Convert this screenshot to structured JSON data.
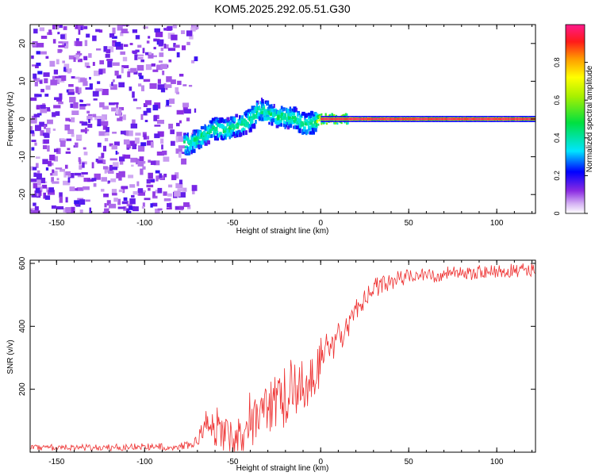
{
  "figure": {
    "title": "KOM5.2025.292.05.51.G30"
  },
  "chart_data": [
    {
      "type": "heatmap",
      "title": "KOM5.2025.292.05.51.G30",
      "xlabel": "Height of straight line (km)",
      "ylabel": "Frequency (Hz)",
      "xlim": [
        -165,
        122
      ],
      "ylim": [
        -25,
        25
      ],
      "xticks": [
        -150,
        -100,
        -50,
        0,
        50,
        100
      ],
      "yticks": [
        -20,
        -10,
        0,
        10,
        20
      ],
      "colorbar": {
        "label": "Normalized spectral amplitude",
        "range": [
          0,
          1
        ],
        "ticks": [
          0.0,
          0.2,
          0.4,
          0.6,
          0.8
        ]
      },
      "ridge": [
        {
          "x": -75,
          "y": -6.5
        },
        {
          "x": -70,
          "y": -5
        },
        {
          "x": -65,
          "y": -3.5
        },
        {
          "x": -60,
          "y": -2.5
        },
        {
          "x": -55,
          "y": -3
        },
        {
          "x": -50,
          "y": -2
        },
        {
          "x": -45,
          "y": -1.5
        },
        {
          "x": -40,
          "y": 0
        },
        {
          "x": -35,
          "y": 2.5
        },
        {
          "x": -30,
          "y": 1.5
        },
        {
          "x": -25,
          "y": 0.5
        },
        {
          "x": -20,
          "y": 0.5
        },
        {
          "x": -15,
          "y": 0
        },
        {
          "x": -10,
          "y": -1.5
        },
        {
          "x": -5,
          "y": -1
        },
        {
          "x": 0,
          "y": 0
        },
        {
          "x": 10,
          "y": 0
        },
        {
          "x": 50,
          "y": 0
        },
        {
          "x": 100,
          "y": 0
        },
        {
          "x": 120,
          "y": 0
        }
      ]
    },
    {
      "type": "line",
      "xlabel": "Height of straight line (km)",
      "ylabel": "SNR (v/v)",
      "xlim": [
        -165,
        122
      ],
      "ylim": [
        0,
        610
      ],
      "xticks": [
        -150,
        -100,
        -50,
        0,
        50,
        100
      ],
      "yticks": [
        200,
        400,
        600
      ],
      "series": [
        {
          "name": "SNR",
          "color": "#ee3333",
          "trend_x": [
            -165,
            -120,
            -80,
            -72,
            -68,
            -65,
            -60,
            -55,
            -50,
            -45,
            -40,
            -35,
            -30,
            -25,
            -20,
            -15,
            -10,
            -5,
            0,
            5,
            10,
            15,
            20,
            25,
            30,
            40,
            50,
            60,
            70,
            80,
            90,
            100,
            110,
            122
          ],
          "trend_y": [
            15,
            15,
            18,
            25,
            60,
            100,
            70,
            50,
            60,
            40,
            70,
            100,
            130,
            160,
            150,
            190,
            210,
            250,
            290,
            310,
            360,
            400,
            450,
            490,
            520,
            545,
            555,
            560,
            565,
            568,
            572,
            575,
            578,
            580
          ],
          "noise_x": [
            -165,
            -72,
            -60,
            -40,
            -20,
            0,
            10,
            20,
            40,
            122
          ],
          "noise_y": [
            10,
            12,
            60,
            80,
            90,
            80,
            60,
            35,
            28,
            22
          ]
        }
      ]
    }
  ]
}
